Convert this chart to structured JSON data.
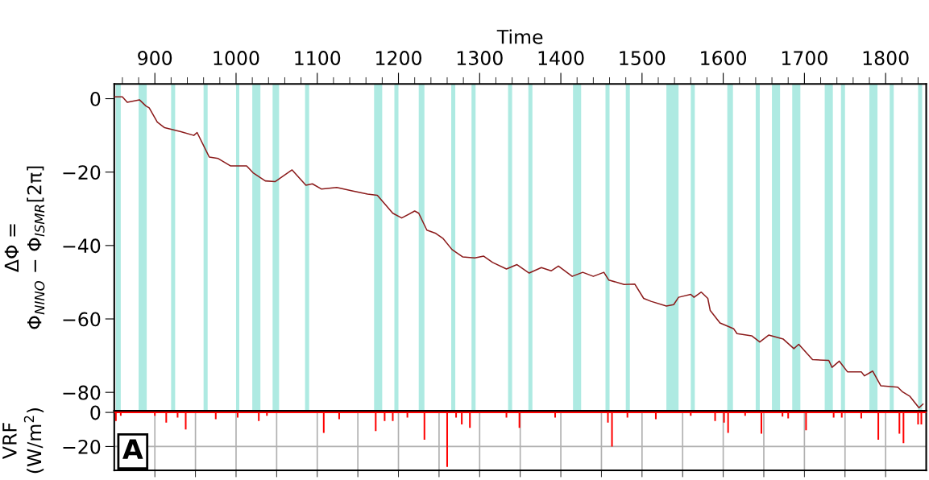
{
  "chart_data": [
    {
      "type": "line",
      "xlabel": "Time",
      "ylabel": "ΔΦ =\nΦ$_{NINO}$ − Φ$_{ISMR}$[2π]",
      "xlim": [
        850,
        1850
      ],
      "ylim": [
        -85,
        4
      ],
      "xticks": [
        {
          "value": 860,
          "label": null
        },
        {
          "value": 880,
          "label": null
        },
        900,
        {
          "value": 920,
          "label": null
        },
        {
          "value": 940,
          "label": null
        },
        {
          "value": 960,
          "label": null
        },
        {
          "value": 980,
          "label": null
        },
        1000,
        {
          "value": 1020,
          "label": null
        },
        {
          "value": 1040,
          "label": null
        },
        {
          "value": 1060,
          "label": null
        },
        {
          "value": 1080,
          "label": null
        },
        1100,
        {
          "value": 1120,
          "label": null
        },
        {
          "value": 1140,
          "label": null
        },
        {
          "value": 1160,
          "label": null
        },
        {
          "value": 1180,
          "label": null
        },
        1200,
        {
          "value": 1220,
          "label": null
        },
        {
          "value": 1240,
          "label": null
        },
        {
          "value": 1260,
          "label": null
        },
        {
          "value": 1280,
          "label": null
        },
        1300,
        {
          "value": 1320,
          "label": null
        },
        {
          "value": 1340,
          "label": null
        },
        {
          "value": 1360,
          "label": null
        },
        {
          "value": 1380,
          "label": null
        },
        1400,
        {
          "value": 1420,
          "label": null
        },
        {
          "value": 1440,
          "label": null
        },
        {
          "value": 1460,
          "label": null
        },
        {
          "value": 1480,
          "label": null
        },
        1500,
        {
          "value": 1520,
          "label": null
        },
        {
          "value": 1540,
          "label": null
        },
        {
          "value": 1560,
          "label": null
        },
        {
          "value": 1580,
          "label": null
        },
        1600,
        {
          "value": 1620,
          "label": null
        },
        {
          "value": 1640,
          "label": null
        },
        {
          "value": 1660,
          "label": null
        },
        {
          "value": 1680,
          "label": null
        },
        1700,
        {
          "value": 1720,
          "label": null
        },
        {
          "value": 1740,
          "label": null
        },
        {
          "value": 1760,
          "label": null
        },
        {
          "value": 1780,
          "label": null
        },
        1800,
        {
          "value": 1820,
          "label": null
        },
        {
          "value": 1840,
          "label": null
        }
      ],
      "yticks": [
        0,
        -20,
        -40,
        -60,
        -80
      ],
      "grid": false,
      "series": [
        {
          "color": "#8b1a1a",
          "x": [
            850,
            860,
            866,
            881,
            889,
            893,
            903,
            912,
            932,
            948,
            952,
            967,
            978,
            993,
            1013,
            1021,
            1036,
            1048,
            1069,
            1086,
            1094,
            1105,
            1124,
            1143,
            1162,
            1174,
            1193,
            1204,
            1220,
            1225,
            1235,
            1246,
            1255,
            1266,
            1279,
            1294,
            1305,
            1316,
            1333,
            1346,
            1361,
            1376,
            1388,
            1397,
            1414,
            1427,
            1440,
            1453,
            1459,
            1478,
            1491,
            1502,
            1511,
            1530,
            1539,
            1545,
            1560,
            1564,
            1573,
            1581,
            1584,
            1596,
            1613,
            1617,
            1635,
            1645,
            1656,
            1674,
            1687,
            1693,
            1710,
            1730,
            1734,
            1743,
            1753,
            1770,
            1774,
            1784,
            1794,
            1815,
            1821,
            1830,
            1841,
            1846
          ],
          "values": [
            0.5,
            0.5,
            -1,
            -0.3,
            -2,
            -2.5,
            -6.4,
            -7.9,
            -9,
            -10,
            -9.2,
            -15.9,
            -16.3,
            -18.3,
            -18.3,
            -20.2,
            -22.4,
            -22.6,
            -19.4,
            -23.6,
            -23.2,
            -24.6,
            -24.2,
            -25.1,
            -26,
            -26.3,
            -31.2,
            -32.5,
            -30.6,
            -31.2,
            -35.8,
            -36.7,
            -38.1,
            -41.1,
            -43.1,
            -43.4,
            -42.9,
            -44.6,
            -46.4,
            -45.2,
            -47.5,
            -46,
            -46.9,
            -45.6,
            -48.4,
            -47.3,
            -48.4,
            -47.3,
            -49.4,
            -50.6,
            -50.5,
            -54.4,
            -55.2,
            -56.5,
            -56.1,
            -54.1,
            -53.3,
            -54.1,
            -52.7,
            -54.4,
            -57.7,
            -61.1,
            -62.7,
            -64,
            -64.6,
            -66.3,
            -64.4,
            -65.5,
            -68.1,
            -66.9,
            -71.1,
            -71.3,
            -73.2,
            -71.5,
            -74.4,
            -74.4,
            -75.5,
            -74.2,
            -78.2,
            -78.6,
            -79.9,
            -81.1,
            -84.2,
            -83.2
          ]
        }
      ],
      "bands": [
        {
          "axis": "x",
          "from": 852,
          "to": 858,
          "color": "#aeeae2"
        },
        {
          "axis": "x",
          "from": 880,
          "to": 890,
          "color": "#aeeae2"
        },
        {
          "axis": "x",
          "from": 920,
          "to": 925,
          "color": "#aeeae2"
        },
        {
          "axis": "x",
          "from": 960,
          "to": 965,
          "color": "#aeeae2"
        },
        {
          "axis": "x",
          "from": 1000,
          "to": 1004,
          "color": "#aeeae2"
        },
        {
          "axis": "x",
          "from": 1020,
          "to": 1030,
          "color": "#aeeae2"
        },
        {
          "axis": "x",
          "from": 1045,
          "to": 1053,
          "color": "#aeeae2"
        },
        {
          "axis": "x",
          "from": 1085,
          "to": 1090,
          "color": "#aeeae2"
        },
        {
          "axis": "x",
          "from": 1170,
          "to": 1180,
          "color": "#aeeae2"
        },
        {
          "axis": "x",
          "from": 1195,
          "to": 1200,
          "color": "#aeeae2"
        },
        {
          "axis": "x",
          "from": 1225,
          "to": 1232,
          "color": "#aeeae2"
        },
        {
          "axis": "x",
          "from": 1265,
          "to": 1270,
          "color": "#aeeae2"
        },
        {
          "axis": "x",
          "from": 1290,
          "to": 1295,
          "color": "#aeeae2"
        },
        {
          "axis": "x",
          "from": 1335,
          "to": 1340,
          "color": "#aeeae2"
        },
        {
          "axis": "x",
          "from": 1360,
          "to": 1365,
          "color": "#aeeae2"
        },
        {
          "axis": "x",
          "from": 1415,
          "to": 1425,
          "color": "#aeeae2"
        },
        {
          "axis": "x",
          "from": 1455,
          "to": 1460,
          "color": "#aeeae2"
        },
        {
          "axis": "x",
          "from": 1480,
          "to": 1485,
          "color": "#aeeae2"
        },
        {
          "axis": "x",
          "from": 1530,
          "to": 1545,
          "color": "#aeeae2"
        },
        {
          "axis": "x",
          "from": 1560,
          "to": 1565,
          "color": "#aeeae2"
        },
        {
          "axis": "x",
          "from": 1605,
          "to": 1612,
          "color": "#aeeae2"
        },
        {
          "axis": "x",
          "from": 1640,
          "to": 1645,
          "color": "#aeeae2"
        },
        {
          "axis": "x",
          "from": 1660,
          "to": 1670,
          "color": "#aeeae2"
        },
        {
          "axis": "x",
          "from": 1685,
          "to": 1695,
          "color": "#aeeae2"
        },
        {
          "axis": "x",
          "from": 1725,
          "to": 1735,
          "color": "#aeeae2"
        },
        {
          "axis": "x",
          "from": 1745,
          "to": 1750,
          "color": "#aeeae2"
        },
        {
          "axis": "x",
          "from": 1780,
          "to": 1790,
          "color": "#aeeae2"
        },
        {
          "axis": "x",
          "from": 1805,
          "to": 1810,
          "color": "#aeeae2"
        },
        {
          "axis": "x",
          "from": 1840,
          "to": 1845,
          "color": "#aeeae2"
        }
      ]
    },
    {
      "type": "bar",
      "ylabel": "VRF\n(W/m$^{2}$)",
      "xlim": [
        850,
        1850
      ],
      "ylim": [
        -34,
        1
      ],
      "xticks": [
        {
          "value": 900,
          "label": null
        },
        {
          "value": 950,
          "label": null
        },
        {
          "value": 1000,
          "label": null
        },
        {
          "value": 1050,
          "label": null
        },
        {
          "value": 1100,
          "label": null
        },
        {
          "value": 1150,
          "label": null
        },
        {
          "value": 1200,
          "label": null
        },
        {
          "value": 1250,
          "label": null
        },
        {
          "value": 1300,
          "label": null
        },
        {
          "value": 1350,
          "label": null
        },
        {
          "value": 1400,
          "label": null
        },
        {
          "value": 1450,
          "label": null
        },
        {
          "value": 1500,
          "label": null
        },
        {
          "value": 1550,
          "label": null
        },
        {
          "value": 1600,
          "label": null
        },
        {
          "value": 1650,
          "label": null
        },
        {
          "value": 1700,
          "label": null
        },
        {
          "value": 1750,
          "label": null
        },
        {
          "value": 1800,
          "label": null
        }
      ],
      "yticks": [
        0,
        -20
      ],
      "grid": true,
      "tick_labels": "y",
      "annotations": [
        "A"
      ],
      "series": [
        {
          "color": "#ff0000",
          "x": [
            852,
            858,
            900,
            914,
            928,
            938,
            975,
            1002,
            1028,
            1038,
            1108,
            1127,
            1172,
            1183,
            1193,
            1211,
            1232,
            1260,
            1271,
            1278,
            1288,
            1333,
            1349,
            1393,
            1458,
            1463,
            1482,
            1517,
            1560,
            1590,
            1601,
            1606,
            1627,
            1647,
            1673,
            1680,
            1702,
            1736,
            1746,
            1770,
            1791,
            1817,
            1822,
            1840,
            1844
          ],
          "values": [
            -5,
            -2,
            -2,
            -6,
            -3,
            -10,
            -4,
            -3,
            -5,
            -2,
            -12,
            -4,
            -11,
            -5,
            -5,
            -3,
            -16,
            -32,
            -3,
            -7,
            -9,
            -3,
            -9,
            -3,
            -6,
            -20,
            -3,
            -4,
            -2,
            -5,
            -6,
            -12,
            -2,
            -12.5,
            -2.5,
            -3.5,
            -10.5,
            -3,
            -3,
            -3.5,
            -16,
            -12.5,
            -18,
            -7,
            -7
          ]
        }
      ]
    }
  ]
}
